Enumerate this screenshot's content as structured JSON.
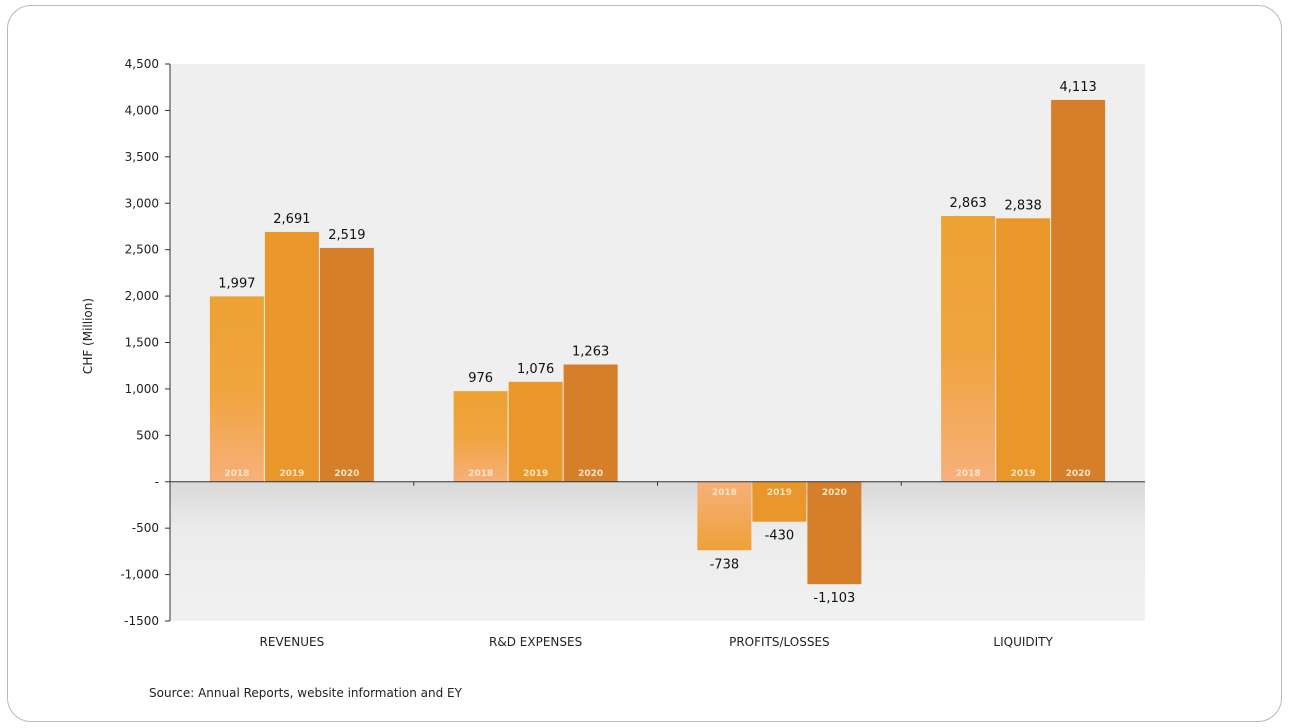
{
  "chart_data": {
    "type": "bar",
    "ylabel": "CHF (Million)",
    "ylim": [
      -1500,
      4500
    ],
    "yticks": [
      {
        "value": 4500,
        "label": "4,500"
      },
      {
        "value": 4000,
        "label": "4,000"
      },
      {
        "value": 3500,
        "label": "3,500"
      },
      {
        "value": 3000,
        "label": "3,000"
      },
      {
        "value": 2500,
        "label": "2,500"
      },
      {
        "value": 2000,
        "label": "2,000"
      },
      {
        "value": 1500,
        "label": "1,500"
      },
      {
        "value": 1000,
        "label": "1,000"
      },
      {
        "value": 500,
        "label": "500"
      },
      {
        "value": 0,
        "label": "-"
      },
      {
        "value": -500,
        "label": "-500"
      },
      {
        "value": -1000,
        "label": "-1,000"
      },
      {
        "value": -1500,
        "label": "-1500"
      }
    ],
    "categories": [
      "REVENUES",
      "R&D EXPENSES",
      "PROFITS/LOSSES",
      "LIQUIDITY"
    ],
    "series": [
      {
        "name": "2018",
        "values": [
          1997,
          976,
          -738,
          2863
        ],
        "labels": [
          "1,997",
          "976",
          "-738",
          "2,863"
        ]
      },
      {
        "name": "2019",
        "values": [
          2691,
          1076,
          -430,
          2838
        ],
        "labels": [
          "2,691",
          "1,076",
          "-430",
          "2,838"
        ]
      },
      {
        "name": "2020",
        "values": [
          2519,
          1263,
          -1103,
          4113
        ],
        "labels": [
          "2,519",
          "1,263",
          "-1,103",
          "4,113"
        ]
      }
    ],
    "colors": {
      "2018_top": "#eda233",
      "2018_bottom": "#f6b07a",
      "2019": "#e9962a",
      "2020": "#d67f2b"
    },
    "grid": false,
    "legend": "none",
    "source": "Source: Annual Reports, website information and EY"
  }
}
